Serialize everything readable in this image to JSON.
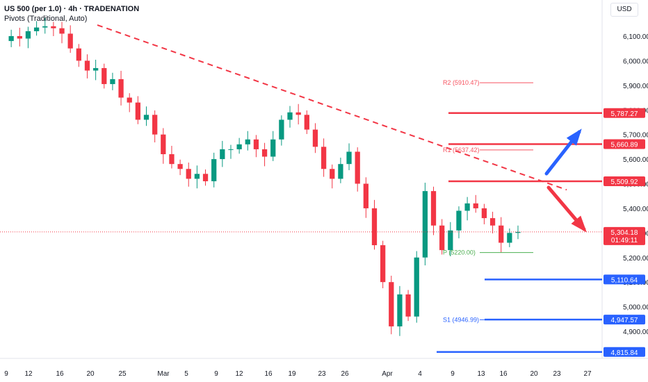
{
  "header": {
    "symbol_line": "US 500 (per 1.0) · 4h · TRADENATION",
    "indicator_line": "Pivots (Traditional, Auto)",
    "currency": "USD"
  },
  "chart_data": {
    "type": "candlestick",
    "y_range": [
      4780,
      6180
    ],
    "y_ticks": [
      "4,900.00",
      "5,000.00",
      "5,100.00",
      "5,200.00",
      "5,300.00",
      "5,400.00",
      "5,500.00",
      "5,600.00",
      "5,700.00",
      "5,800.00",
      "5,900.00",
      "6,000.00",
      "6,100.00"
    ],
    "y_tick_values": [
      4900,
      5000,
      5100,
      5200,
      5300,
      5400,
      5500,
      5600,
      5700,
      5800,
      5900,
      6000,
      6100
    ],
    "x_labels": [
      "9",
      "12",
      "16",
      "20",
      "25",
      "Mar",
      "5",
      "9",
      "12",
      "16",
      "19",
      "23",
      "26",
      "Apr",
      "4",
      "9",
      "13",
      "16",
      "20",
      "23",
      "27"
    ],
    "price_path": [
      6080,
      6100,
      6090,
      6120,
      6135,
      6140,
      6132,
      6110,
      6050,
      6000,
      5960,
      5970,
      5905,
      5925,
      5850,
      5830,
      5760,
      5780,
      5700,
      5620,
      5580,
      5560,
      5520,
      5540,
      5510,
      5600,
      5640,
      5640,
      5660,
      5680,
      5640,
      5610,
      5680,
      5760,
      5790,
      5780,
      5720,
      5650,
      5560,
      5520,
      5580,
      5630,
      5500,
      5400,
      5250,
      5100,
      4920,
      5050,
      4960,
      5200,
      5470,
      5330,
      5230,
      5310,
      5390,
      5420,
      5400,
      5360,
      5330,
      5260,
      5300,
      5304
    ],
    "current_price": "5,304.18",
    "countdown": "01:49:11",
    "pivots": [
      {
        "label": "R2 (5910.47)",
        "value": 5910.47
      },
      {
        "label": "R1 (5637.42)",
        "value": 5637.42
      },
      {
        "label": "P (5220.00)",
        "value": 5220.0
      },
      {
        "label": "S1 (4946.99)",
        "value": 4946.99
      }
    ],
    "key_levels": [
      {
        "value": 5787.27,
        "label": "5,787.27",
        "color": "#f23645"
      },
      {
        "value": 5660.89,
        "label": "5,660.89",
        "color": "#f23645"
      },
      {
        "value": 5509.92,
        "label": "5,509.92",
        "color": "#f23645"
      },
      {
        "value": 5110.64,
        "label": "5,110.64",
        "color": "#2962ff"
      },
      {
        "value": 4947.57,
        "label": "4,947.57",
        "color": "#2962ff"
      },
      {
        "value": 4815.84,
        "label": "4,815.84",
        "color": "#2962ff"
      }
    ],
    "trendline": {
      "from_value": 6145,
      "to_value": 5475
    },
    "colors": {
      "up": "#089981",
      "down": "#f23645",
      "current": "#f23645",
      "support": "#2962ff",
      "resistance": "#f23645",
      "pivot": "#f7525f",
      "pivot_p": "#4caf50"
    },
    "arrows": [
      {
        "direction": "up",
        "color": "#2962ff"
      },
      {
        "direction": "down",
        "color": "#f23645"
      }
    ]
  }
}
